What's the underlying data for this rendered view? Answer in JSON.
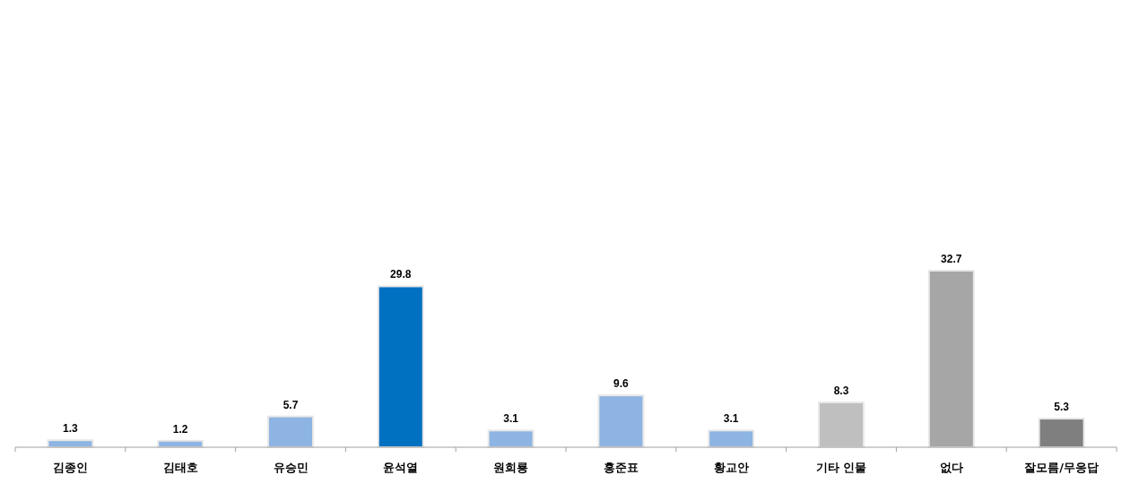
{
  "chart_data": {
    "type": "bar",
    "categories": [
      "김종인",
      "김태호",
      "유승민",
      "윤석열",
      "원희룡",
      "홍준표",
      "황교안",
      "기타 인물",
      "없다",
      "잘모름/무응답"
    ],
    "values": [
      1.3,
      1.2,
      5.7,
      29.8,
      3.1,
      9.6,
      3.1,
      8.3,
      32.7,
      5.3
    ],
    "colors": [
      "#8db4e2",
      "#8db4e2",
      "#8db4e2",
      "#0070c0",
      "#8db4e2",
      "#8db4e2",
      "#8db4e2",
      "#bfbfbf",
      "#a6a6a6",
      "#7f7f7f"
    ],
    "data_labels": true
  }
}
